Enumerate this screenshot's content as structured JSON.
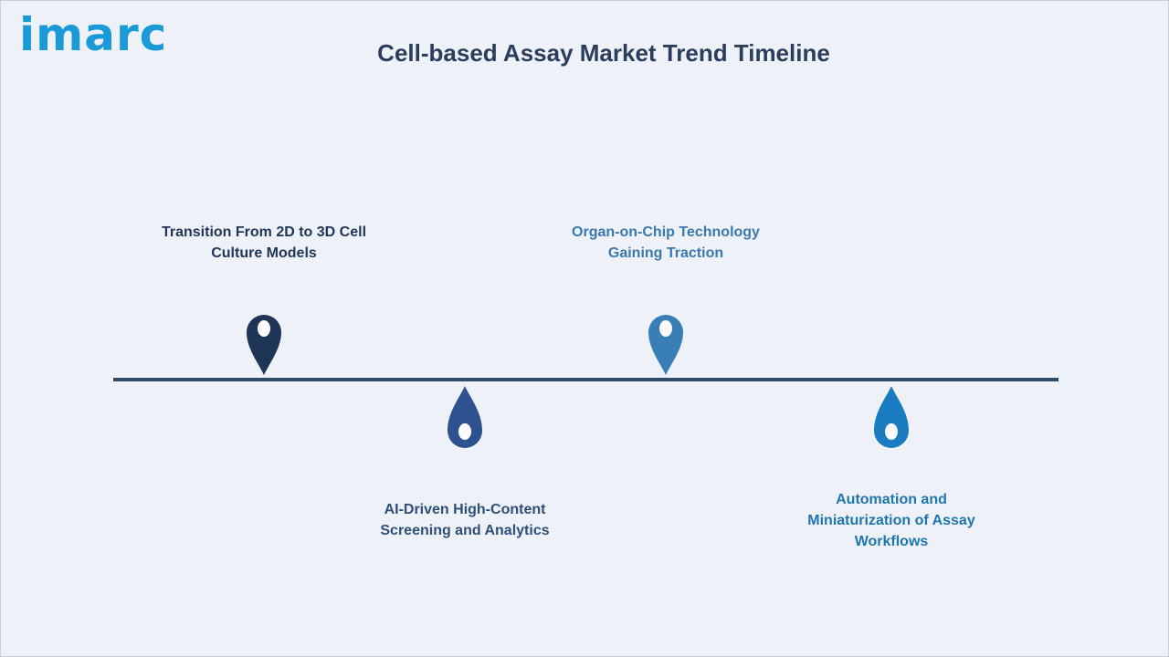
{
  "brand": {
    "logo_text": "imarc"
  },
  "title": "Cell-based Assay Market Trend Timeline",
  "colors": {
    "background": "#eef2f8",
    "timeline": "#2e4b67",
    "title": "#2b3d5c",
    "logo": "#1a9ad6"
  },
  "milestones": [
    {
      "text": "Transition From 2D to 3D Cell\nCulture Models",
      "color": "#1f3557",
      "pin_color": "#1f3557",
      "position": "above",
      "icon": "map-pin-icon"
    },
    {
      "text": "AI-Driven High-Content\nScreening and Analytics",
      "color": "#2e4f78",
      "pin_color": "#2e5290",
      "position": "below",
      "icon": "droplet-icon"
    },
    {
      "text": "Organ-on-Chip Technology\nGaining Traction",
      "color": "#3a78b0",
      "pin_color": "#3a7eb8",
      "position": "above",
      "icon": "map-pin-icon"
    },
    {
      "text": "Automation and\nMiniaturization of Assay\nWorkflows",
      "color": "#1f76ae",
      "pin_color": "#1a7bc0",
      "position": "below",
      "icon": "droplet-icon"
    }
  ]
}
